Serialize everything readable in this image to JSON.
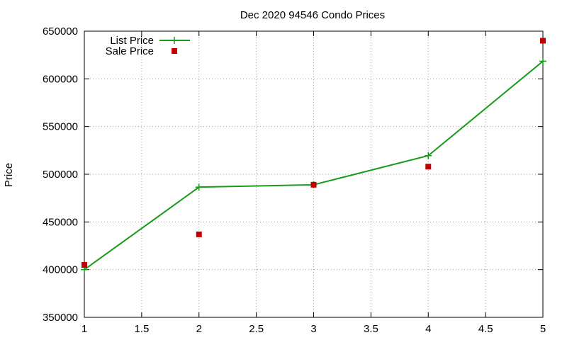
{
  "chart_data": {
    "type": "line",
    "title": "Dec 2020 94546 Condo Prices",
    "xlabel": "",
    "ylabel": "Price",
    "xlim": [
      1,
      5
    ],
    "ylim": [
      350000,
      650000
    ],
    "xticks": [
      "1",
      "1.5",
      "2",
      "2.5",
      "3",
      "3.5",
      "4",
      "4.5",
      "5"
    ],
    "yticks": [
      "350000",
      "400000",
      "450000",
      "500000",
      "550000",
      "600000",
      "650000"
    ],
    "grid": true,
    "legend_position": "top-left",
    "series": [
      {
        "name": "List Price",
        "style": "line-with-plus-markers",
        "color": "#1a9a1a",
        "x": [
          1,
          2,
          3,
          4,
          5
        ],
        "values": [
          400000,
          486500,
          489000,
          519500,
          618500
        ]
      },
      {
        "name": "Sale Price",
        "style": "square-markers",
        "color": "#c00000",
        "x": [
          1,
          2,
          3,
          4,
          5
        ],
        "values": [
          405000,
          437000,
          489000,
          508000,
          640000
        ]
      }
    ]
  }
}
